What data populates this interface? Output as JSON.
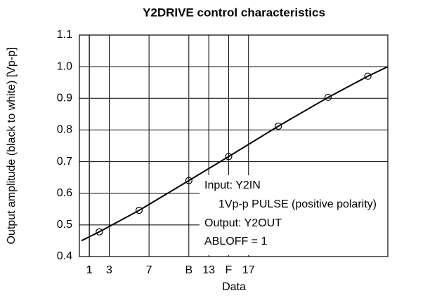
{
  "chart_data": {
    "type": "line",
    "title": "Y2DRIVE control characteristics",
    "xlabel": "Data",
    "ylabel": "Output amplitude (black to white) [Vp-p]",
    "annotations": [
      "Input: Y2IN",
      "1Vp-p PULSE (positive polarity)",
      "Output: Y2OUT",
      "ABLOFF = 1"
    ],
    "series": [
      {
        "color": "#000000",
        "marker": false,
        "x": [
          0.2,
          2,
          6,
          11,
          15,
          20,
          25,
          29,
          31
        ],
        "values": [
          0.45,
          0.478,
          0.546,
          0.64,
          0.716,
          0.812,
          0.903,
          0.97,
          1.0
        ]
      },
      {
        "color": "#000000",
        "marker": true,
        "x": [
          2,
          6,
          11,
          15,
          20,
          25,
          29
        ],
        "values": [
          0.478,
          0.546,
          0.64,
          0.716,
          0.812,
          0.903,
          0.97
        ]
      }
    ],
    "xlim": [
      0,
      31
    ],
    "xticks": [
      3,
      7,
      {
        "value": 11,
        "label": "B"
      },
      {
        "value": 15,
        "label": "F"
      },
      13,
      17,
      1,
      1
    ],
    "ylim": [
      0.4,
      1.1
    ],
    "yticks": [
      0.4,
      0.5,
      0.6,
      0.7,
      0.8,
      0.9,
      {
        "value": 1.0,
        "label": "1.0"
      },
      1.1
    ],
    "grid": true
  }
}
